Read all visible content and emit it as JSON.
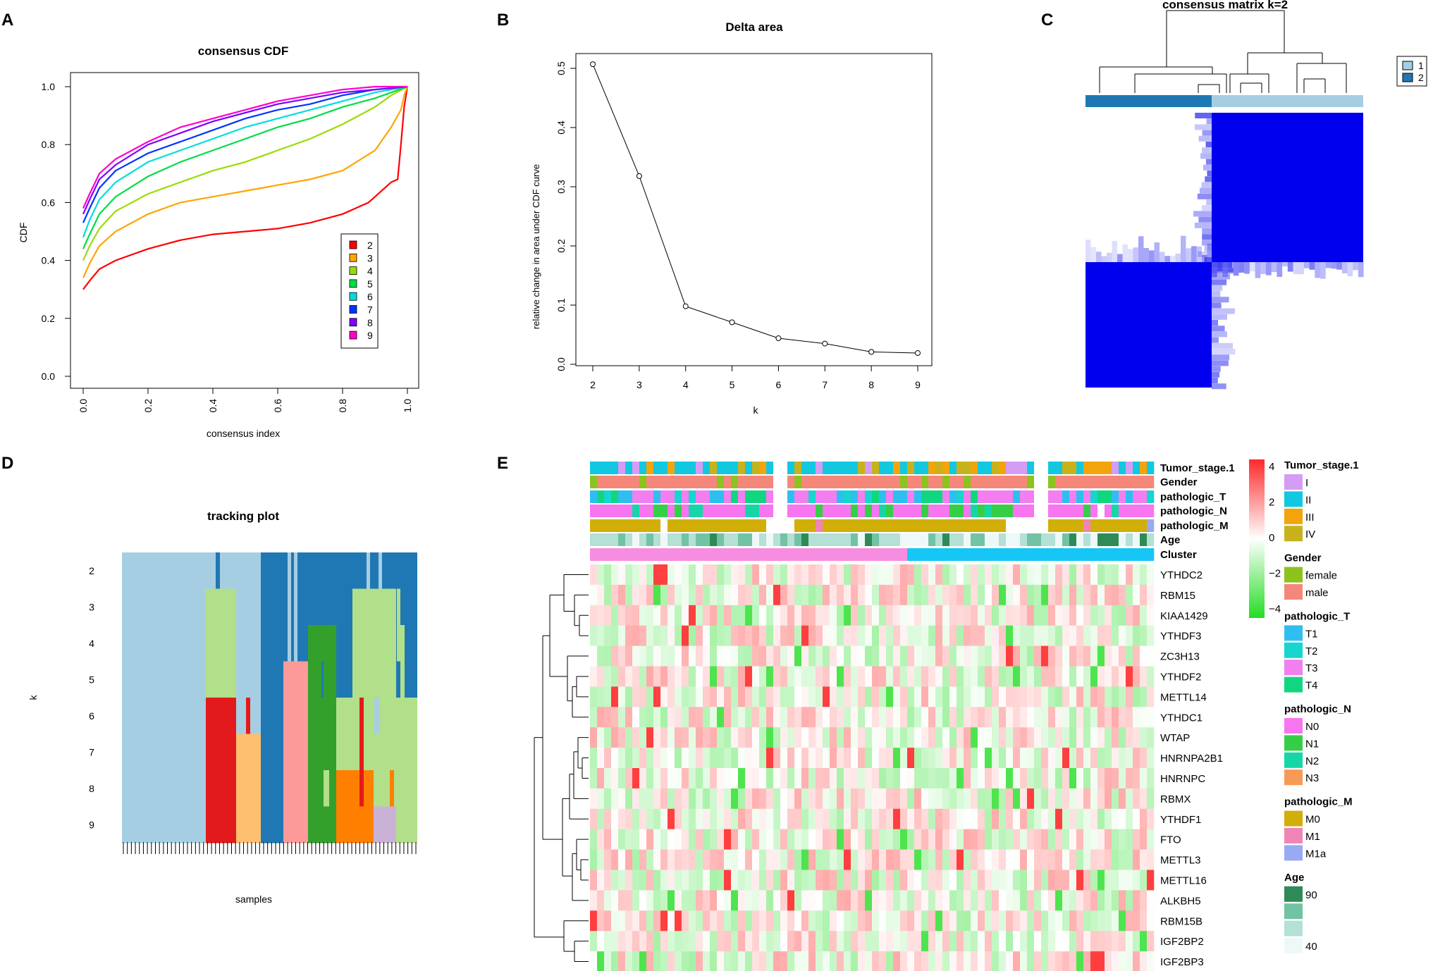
{
  "colors": {
    "blue_hm": "#0000ee",
    "cluster1": "#a6cee3",
    "cluster2": "#1f78b4",
    "heat_high": "#ff2a2a",
    "heat_low": "#22dd22",
    "cluster_pink": "#f78de0",
    "cluster_cyan": "#16c6f5"
  },
  "chart_data": [
    {
      "panel": "A",
      "type": "line",
      "title": "consensus CDF",
      "xlabel": "consensus index",
      "ylabel": "CDF",
      "xlim": [
        0,
        1
      ],
      "ylim": [
        0,
        1
      ],
      "xticks": [
        "0.0",
        "0.2",
        "0.4",
        "0.6",
        "0.8",
        "1.0"
      ],
      "yticks": [
        "0.0",
        "0.2",
        "0.4",
        "0.6",
        "0.8",
        "1.0"
      ],
      "legend_position": "right",
      "series": [
        {
          "name": "2",
          "color": "#ff0000",
          "x": [
            0.0,
            0.02,
            0.05,
            0.1,
            0.2,
            0.3,
            0.4,
            0.5,
            0.6,
            0.7,
            0.8,
            0.88,
            0.95,
            0.97,
            0.98,
            0.99,
            1.0
          ],
          "y": [
            0.3,
            0.33,
            0.37,
            0.4,
            0.44,
            0.47,
            0.49,
            0.5,
            0.51,
            0.53,
            0.56,
            0.6,
            0.67,
            0.68,
            0.8,
            0.93,
            1.0
          ]
        },
        {
          "name": "3",
          "color": "#ffa500",
          "x": [
            0.0,
            0.02,
            0.05,
            0.1,
            0.2,
            0.3,
            0.4,
            0.5,
            0.6,
            0.7,
            0.8,
            0.9,
            0.95,
            0.98,
            0.99,
            1.0
          ],
          "y": [
            0.34,
            0.39,
            0.45,
            0.5,
            0.56,
            0.6,
            0.62,
            0.64,
            0.66,
            0.68,
            0.71,
            0.78,
            0.86,
            0.92,
            0.97,
            1.0
          ]
        },
        {
          "name": "4",
          "color": "#99dd00",
          "x": [
            0.0,
            0.02,
            0.05,
            0.1,
            0.2,
            0.3,
            0.4,
            0.5,
            0.6,
            0.7,
            0.8,
            0.9,
            0.95,
            1.0
          ],
          "y": [
            0.4,
            0.45,
            0.51,
            0.57,
            0.63,
            0.67,
            0.71,
            0.74,
            0.78,
            0.82,
            0.87,
            0.93,
            0.97,
            1.0
          ]
        },
        {
          "name": "5",
          "color": "#00dd44",
          "x": [
            0.0,
            0.02,
            0.05,
            0.1,
            0.2,
            0.3,
            0.4,
            0.5,
            0.6,
            0.7,
            0.8,
            0.9,
            1.0
          ],
          "y": [
            0.44,
            0.49,
            0.56,
            0.62,
            0.69,
            0.74,
            0.78,
            0.82,
            0.86,
            0.89,
            0.93,
            0.96,
            1.0
          ]
        },
        {
          "name": "6",
          "color": "#00dddd",
          "x": [
            0.0,
            0.02,
            0.05,
            0.1,
            0.2,
            0.3,
            0.4,
            0.5,
            0.6,
            0.7,
            0.8,
            0.9,
            1.0
          ],
          "y": [
            0.48,
            0.54,
            0.61,
            0.67,
            0.74,
            0.78,
            0.82,
            0.86,
            0.89,
            0.92,
            0.95,
            0.98,
            1.0
          ]
        },
        {
          "name": "7",
          "color": "#0033ff",
          "x": [
            0.0,
            0.02,
            0.05,
            0.1,
            0.2,
            0.3,
            0.4,
            0.5,
            0.6,
            0.7,
            0.8,
            0.9,
            1.0
          ],
          "y": [
            0.53,
            0.58,
            0.65,
            0.71,
            0.77,
            0.81,
            0.85,
            0.89,
            0.92,
            0.94,
            0.97,
            0.99,
            1.0
          ]
        },
        {
          "name": "8",
          "color": "#7f00ff",
          "x": [
            0.0,
            0.02,
            0.05,
            0.1,
            0.2,
            0.3,
            0.4,
            0.5,
            0.6,
            0.7,
            0.8,
            0.9,
            1.0
          ],
          "y": [
            0.56,
            0.61,
            0.68,
            0.73,
            0.8,
            0.84,
            0.88,
            0.91,
            0.94,
            0.96,
            0.98,
            0.99,
            1.0
          ]
        },
        {
          "name": "9",
          "color": "#ff00cc",
          "x": [
            0.0,
            0.02,
            0.05,
            0.1,
            0.2,
            0.3,
            0.4,
            0.5,
            0.6,
            0.7,
            0.8,
            0.9,
            1.0
          ],
          "y": [
            0.58,
            0.63,
            0.7,
            0.75,
            0.81,
            0.86,
            0.89,
            0.92,
            0.95,
            0.97,
            0.99,
            1.0,
            1.0
          ]
        }
      ]
    },
    {
      "panel": "B",
      "type": "line",
      "title": "Delta area",
      "xlabel": "k",
      "ylabel": "relative change in area under CDF curve",
      "x": [
        2,
        3,
        4,
        5,
        6,
        7,
        8,
        9
      ],
      "values": [
        0.507,
        0.318,
        0.098,
        0.071,
        0.044,
        0.035,
        0.021,
        0.019
      ],
      "xlim": [
        2,
        9
      ],
      "ylim": [
        0,
        0.5
      ],
      "xticks": [
        "2",
        "3",
        "4",
        "5",
        "6",
        "7",
        "8",
        "9"
      ],
      "yticks": [
        "0.0",
        "0.1",
        "0.2",
        "0.3",
        "0.4",
        "0.5"
      ]
    },
    {
      "panel": "C",
      "type": "heatmap",
      "title": "consensus matrix k=2",
      "legend": [
        {
          "label": "1",
          "color": "#a6cee3"
        },
        {
          "label": "2",
          "color": "#1f78b4"
        }
      ],
      "cluster_sizes": [
        43,
        57
      ]
    },
    {
      "panel": "D",
      "type": "heatmap",
      "title": "tracking plot",
      "xlabel": "samples",
      "ylabel": "k",
      "k_values": [
        "2",
        "3",
        "4",
        "5",
        "6",
        "7",
        "8",
        "9"
      ],
      "sample_ticks": 74
    },
    {
      "panel": "E",
      "type": "heatmap",
      "genes": [
        "YTHDC2",
        "RBM15",
        "KIAA1429",
        "YTHDF3",
        "ZC3H13",
        "YTHDF2",
        "METTL14",
        "YTHDC1",
        "WTAP",
        "HNRNPA2B1",
        "HNRNPC",
        "RBMX",
        "YTHDF1",
        "FTO",
        "METTL3",
        "METTL16",
        "ALKBH5",
        "RBM15B",
        "IGF2BP2",
        "IGF2BP3"
      ],
      "annotation_tracks": [
        "Tumor_stage.1",
        "Gender",
        "pathologic_T",
        "pathologic_N",
        "pathologic_M",
        "Age",
        "Cluster"
      ],
      "scale_ticks": [
        "4",
        "2",
        "0",
        "−2",
        "−4"
      ],
      "scale_range": [
        -4,
        4
      ],
      "legends": [
        {
          "title": "Tumor_stage.1",
          "items": [
            {
              "label": "I",
              "color": "#d59cf5"
            },
            {
              "label": "II",
              "color": "#11c8e0"
            },
            {
              "label": "III",
              "color": "#f3a40a"
            },
            {
              "label": "IV",
              "color": "#c8b21b"
            }
          ]
        },
        {
          "title": "Gender",
          "items": [
            {
              "label": "female",
              "color": "#8cc31d"
            },
            {
              "label": "male",
              "color": "#f5877a"
            }
          ]
        },
        {
          "title": "pathologic_T",
          "items": [
            {
              "label": "T1",
              "color": "#2ebff0"
            },
            {
              "label": "T2",
              "color": "#16d6cf"
            },
            {
              "label": "T3",
              "color": "#f27ef0"
            },
            {
              "label": "T4",
              "color": "#11d680"
            }
          ]
        },
        {
          "title": "pathologic_N",
          "items": [
            {
              "label": "N0",
              "color": "#f775ef"
            },
            {
              "label": "N1",
              "color": "#35cf47"
            },
            {
              "label": "N2",
              "color": "#16d6a8"
            },
            {
              "label": "N3",
              "color": "#f79a55"
            }
          ]
        },
        {
          "title": "pathologic_M",
          "items": [
            {
              "label": "M0",
              "color": "#d2ae09"
            },
            {
              "label": "M1",
              "color": "#f084b6"
            },
            {
              "label": "M1a",
              "color": "#99aaf4"
            }
          ]
        },
        {
          "title": "Age",
          "items": [
            {
              "label": "90",
              "color": "#2e8b57"
            },
            {
              "label": "",
              "color": "#72c2a4"
            },
            {
              "label": "",
              "color": "#b4e0d6"
            },
            {
              "label": "40",
              "color": "#eef8f8"
            }
          ]
        }
      ]
    }
  ]
}
